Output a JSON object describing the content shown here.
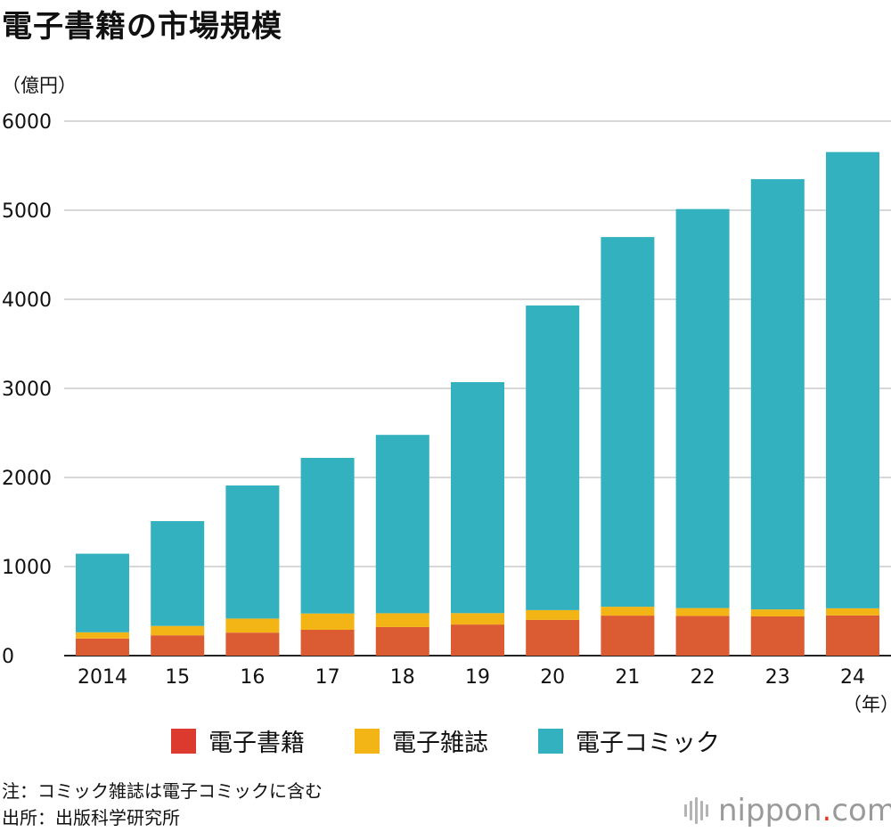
{
  "header": {
    "title": "電子書籍の市場規模",
    "unit": "（億円）"
  },
  "chart_data": {
    "type": "bar",
    "stacked": true,
    "title": "電子書籍の市場規模",
    "ylabel": "（億円）",
    "xlabel": "（年）",
    "ylim": [
      0,
      6000
    ],
    "yticks": [
      0,
      1000,
      2000,
      3000,
      4000,
      5000,
      6000
    ],
    "ytick_labels": [
      "0",
      "1000",
      "2000",
      "3000",
      "4000",
      "5000",
      "6000"
    ],
    "grid": true,
    "categories": [
      "2014",
      "15",
      "16",
      "17",
      "18",
      "19",
      "20",
      "21",
      "22",
      "23",
      "24"
    ],
    "series": [
      {
        "name": "電子書籍",
        "color": "#db5b33",
        "values": [
          192,
          228,
          258,
          290,
          321,
          349,
          401,
          449,
          446,
          440,
          451
        ]
      },
      {
        "name": "電子雑誌",
        "color": "#f3b515",
        "values": [
          70,
          105,
          158,
          183,
          155,
          128,
          110,
          100,
          88,
          79,
          80
        ]
      },
      {
        "name": "電子コミック",
        "color": "#33b1bf",
        "values": [
          882,
          1177,
          1494,
          1747,
          2002,
          2593,
          3420,
          4150,
          4479,
          4830,
          5122
        ]
      }
    ],
    "legend_position": "bottom"
  },
  "legend": {
    "items": [
      {
        "label": "電子書籍",
        "color": "#dd3a2f"
      },
      {
        "label": "電子雑誌",
        "color": "#f3b515"
      },
      {
        "label": "電子コミック",
        "color": "#33b1bf"
      }
    ]
  },
  "notes": {
    "note": "注：コミック雑誌は電子コミックに含む",
    "source": "出所：出版科学研究所"
  },
  "brand": {
    "name_main": "nippon",
    "name_dot": ".",
    "name_tld": "com"
  }
}
